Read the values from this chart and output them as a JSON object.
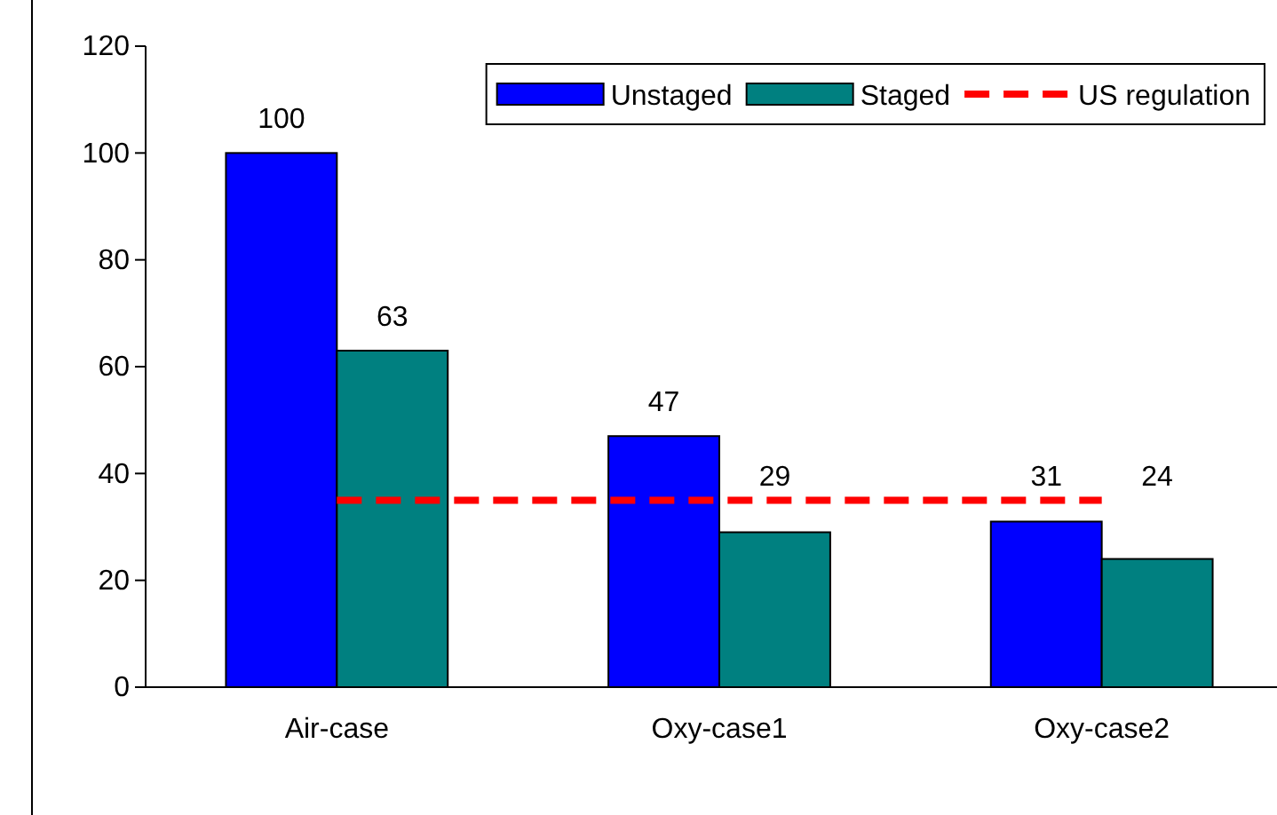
{
  "chart_data": {
    "type": "bar",
    "categories": [
      "Air-case",
      "Oxy-case1",
      "Oxy-case2"
    ],
    "series": [
      {
        "name": "Unstaged",
        "color": "#0000ff",
        "values": [
          100,
          47,
          31
        ]
      },
      {
        "name": "Staged",
        "color": "#008080",
        "values": [
          63,
          29,
          24
        ]
      }
    ],
    "ylim": [
      0,
      120
    ],
    "yticks": [
      0,
      20,
      40,
      60,
      80,
      100,
      120
    ],
    "grid": false,
    "legend": "top right",
    "data_labels": true,
    "ref_lines": [
      {
        "axis": "y",
        "value": 35,
        "label": "US regulation",
        "color": "#ff0000",
        "line_style": "dashed"
      }
    ]
  }
}
